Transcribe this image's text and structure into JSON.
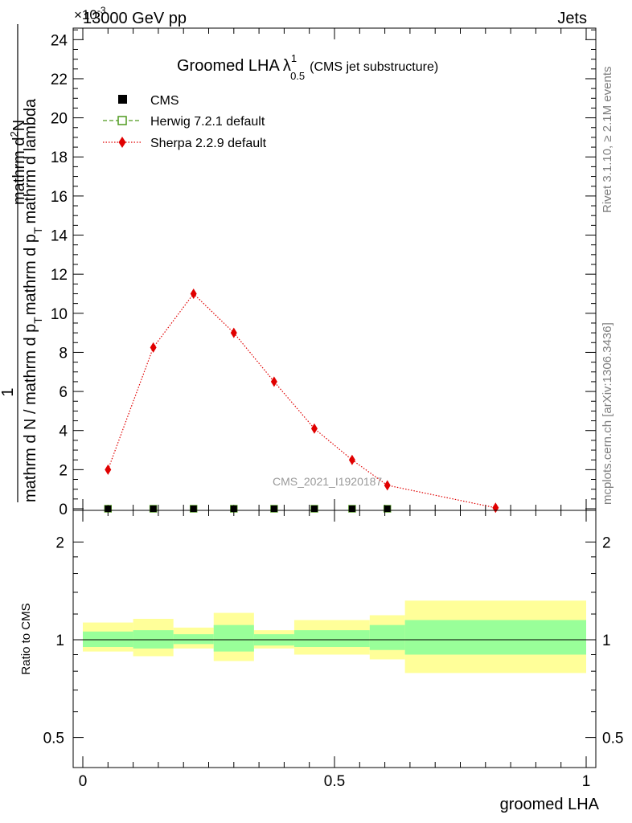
{
  "header": {
    "left": "13000 GeV pp",
    "right": "Jets",
    "exponent": "×10",
    "exponent_power": "-3"
  },
  "plot_title": {
    "main": "Groomed LHA",
    "lambda": "λ",
    "sup": "1",
    "sub": "0.5",
    "paren": "(CMS jet substructure)"
  },
  "ylabel": {
    "numerator": "1",
    "denominator": "mathrm d N / mathrm d p",
    "denominator_sub": "T",
    "frac_num": "mathrm d",
    "frac_num_sup": "2",
    "frac_num_N": "N",
    "frac_den_a": "mathrm d p",
    "frac_den_sub": "T",
    "frac_den_b": "mathrm d lambda"
  },
  "side_labels": {
    "rivet": "Rivet 3.1.10, ≥ 2.1M events",
    "mcplots": "mcplots.cern.ch [arXiv:1306.3436]"
  },
  "watermark": "CMS_2021_I1920187",
  "legend": [
    {
      "name": "CMS",
      "color": "#000000",
      "marker": "square-filled"
    },
    {
      "name": "Herwig 7.2.1 default",
      "color": "#4f9a1e",
      "marker": "square-open",
      "line": "dashed"
    },
    {
      "name": "Sherpa 2.2.9 default",
      "color": "#e00000",
      "marker": "diamond",
      "line": "dotted"
    }
  ],
  "ratio_ylabel": "Ratio to CMS",
  "xlabel": "groomed LHA",
  "colors": {
    "band_inner": "#99ff99",
    "band_outer": "#ffff99",
    "sherpa": "#e00000",
    "herwig": "#4f9a1e"
  },
  "chart_data": [
    {
      "type": "line",
      "panel": "main",
      "xlim": [
        0,
        1
      ],
      "ylim": [
        0,
        25
      ],
      "y_scale_factor": "1e-3",
      "yticks": [
        0,
        2,
        4,
        6,
        8,
        10,
        12,
        14,
        16,
        18,
        20,
        22,
        24
      ],
      "series": [
        {
          "name": "CMS",
          "x": [
            0.05,
            0.14,
            0.22,
            0.3,
            0.38,
            0.46,
            0.535,
            0.605
          ],
          "y": [
            0,
            0,
            0,
            0,
            0,
            0,
            0,
            0
          ]
        },
        {
          "name": "Herwig 7.2.1 default",
          "x": [
            0.05,
            0.14,
            0.22,
            0.3,
            0.38,
            0.46,
            0.535,
            0.605
          ],
          "y": [
            0,
            0,
            0,
            0,
            0,
            0,
            0,
            0
          ]
        },
        {
          "name": "Sherpa 2.2.9 default",
          "x": [
            0.05,
            0.14,
            0.22,
            0.3,
            0.38,
            0.46,
            0.535,
            0.605,
            0.82
          ],
          "y": [
            2.0,
            8.25,
            11.0,
            9.0,
            6.5,
            4.1,
            2.5,
            1.2,
            0.05
          ]
        }
      ]
    },
    {
      "type": "area",
      "panel": "ratio",
      "xlim": [
        0,
        1
      ],
      "ylim": [
        0.4,
        2.4
      ],
      "y_scale": "log",
      "yticks": [
        "0.5",
        "1",
        "2"
      ],
      "xticks": [
        "0",
        "0.5",
        "1"
      ],
      "reference": 1,
      "bins": [
        {
          "x0": 0.0,
          "x1": 0.1,
          "inner": [
            0.95,
            1.06
          ],
          "outer": [
            0.92,
            1.13
          ]
        },
        {
          "x0": 0.1,
          "x1": 0.18,
          "inner": [
            0.94,
            1.07
          ],
          "outer": [
            0.89,
            1.16
          ]
        },
        {
          "x0": 0.18,
          "x1": 0.26,
          "inner": [
            0.97,
            1.04
          ],
          "outer": [
            0.94,
            1.09
          ]
        },
        {
          "x0": 0.26,
          "x1": 0.34,
          "inner": [
            0.92,
            1.11
          ],
          "outer": [
            0.86,
            1.21
          ]
        },
        {
          "x0": 0.34,
          "x1": 0.42,
          "inner": [
            0.96,
            1.04
          ],
          "outer": [
            0.94,
            1.07
          ]
        },
        {
          "x0": 0.42,
          "x1": 0.57,
          "inner": [
            0.95,
            1.07
          ],
          "outer": [
            0.9,
            1.15
          ]
        },
        {
          "x0": 0.57,
          "x1": 0.64,
          "inner": [
            0.93,
            1.11
          ],
          "outer": [
            0.87,
            1.19
          ]
        },
        {
          "x0": 0.64,
          "x1": 1.0,
          "inner": [
            0.9,
            1.15
          ],
          "outer": [
            0.79,
            1.32
          ]
        }
      ]
    }
  ]
}
